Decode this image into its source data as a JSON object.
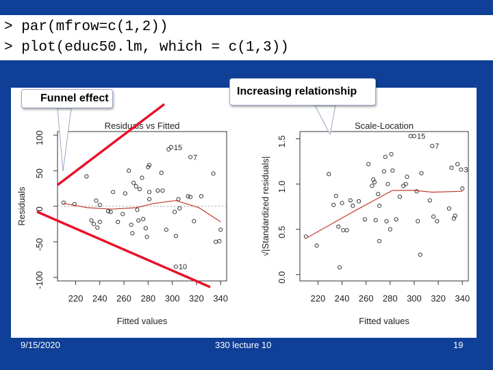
{
  "code": {
    "line1": "> par(mfrow=c(1,2))",
    "line2": "> plot(educ50.lm, which = c(1,3))"
  },
  "callouts": {
    "funnel": "Funnel effect",
    "increasing": "Increasing relationship"
  },
  "footer": {
    "date": "9/15/2020",
    "title": "330 lecture 10",
    "page": "19"
  },
  "colors": {
    "slide_bg": "#0f3f96",
    "smoother": "#c0392b",
    "annotation_line": "#e8102a"
  },
  "chart_data": [
    {
      "type": "scatter",
      "title": "Residuals vs Fitted",
      "xlabel": "Fitted values",
      "ylabel": "Residuals",
      "xlim": [
        205,
        345
      ],
      "ylim": [
        -105,
        105
      ],
      "xticks": [
        "220",
        "240",
        "260",
        "280",
        "300",
        "320",
        "340"
      ],
      "yticks": [
        "-100",
        "-50",
        "0",
        "50",
        "100"
      ],
      "reference_line": 0,
      "points": [
        {
          "x": 210,
          "y": 5
        },
        {
          "x": 219,
          "y": 3
        },
        {
          "x": 229,
          "y": 42
        },
        {
          "x": 233,
          "y": -20
        },
        {
          "x": 235,
          "y": -25
        },
        {
          "x": 237,
          "y": 8
        },
        {
          "x": 238,
          "y": -30
        },
        {
          "x": 240,
          "y": -22
        },
        {
          "x": 240,
          "y": 2
        },
        {
          "x": 247,
          "y": -7
        },
        {
          "x": 249,
          "y": -8
        },
        {
          "x": 251,
          "y": 20
        },
        {
          "x": 255,
          "y": -22
        },
        {
          "x": 259,
          "y": -11
        },
        {
          "x": 261,
          "y": 18
        },
        {
          "x": 264,
          "y": 50
        },
        {
          "x": 266,
          "y": -26
        },
        {
          "x": 267,
          "y": -38
        },
        {
          "x": 268,
          "y": 33
        },
        {
          "x": 270,
          "y": 28
        },
        {
          "x": 271,
          "y": -5
        },
        {
          "x": 272,
          "y": -20
        },
        {
          "x": 273,
          "y": 24
        },
        {
          "x": 275,
          "y": 40
        },
        {
          "x": 276,
          "y": -18
        },
        {
          "x": 278,
          "y": -31
        },
        {
          "x": 279,
          "y": -43
        },
        {
          "x": 280,
          "y": 55
        },
        {
          "x": 281,
          "y": 58
        },
        {
          "x": 281,
          "y": 20
        },
        {
          "x": 281,
          "y": 10
        },
        {
          "x": 288,
          "y": 22
        },
        {
          "x": 291,
          "y": 47
        },
        {
          "x": 292,
          "y": 22
        },
        {
          "x": 295,
          "y": -33
        },
        {
          "x": 297,
          "y": 80
        },
        {
          "x": 302,
          "y": -8
        },
        {
          "x": 303,
          "y": -42
        },
        {
          "x": 305,
          "y": 10
        },
        {
          "x": 306,
          "y": -3
        },
        {
          "x": 313,
          "y": 14
        },
        {
          "x": 315,
          "y": 13
        },
        {
          "x": 318,
          "y": -21
        },
        {
          "x": 324,
          "y": 14
        },
        {
          "x": 334,
          "y": 46
        },
        {
          "x": 336,
          "y": -50
        },
        {
          "x": 339,
          "y": -49
        },
        {
          "x": 340,
          "y": -33
        }
      ],
      "smoother": [
        {
          "x": 210,
          "y": 4
        },
        {
          "x": 230,
          "y": -2
        },
        {
          "x": 250,
          "y": -4
        },
        {
          "x": 270,
          "y": -2
        },
        {
          "x": 285,
          "y": 4
        },
        {
          "x": 303,
          "y": 8
        },
        {
          "x": 322,
          "y": -2
        },
        {
          "x": 340,
          "y": -22
        }
      ],
      "labeled_points": [
        {
          "x": 299,
          "y": 83,
          "label": "15"
        },
        {
          "x": 315,
          "y": 69,
          "label": "7"
        },
        {
          "x": 303,
          "y": -85,
          "label": "10"
        }
      ]
    },
    {
      "type": "scatter",
      "title": "Scale-Location",
      "xlabel": "Fitted values",
      "ylabel": "√|Standardized residuals|",
      "xlim": [
        205,
        345
      ],
      "ylim": [
        -0.07,
        1.58
      ],
      "xticks": [
        "220",
        "240",
        "260",
        "280",
        "300",
        "320",
        "340"
      ],
      "yticks": [
        "0.0",
        "0.5",
        "1.0",
        "1.5"
      ],
      "points": [
        {
          "x": 210,
          "y": 0.42
        },
        {
          "x": 219,
          "y": 0.32
        },
        {
          "x": 229,
          "y": 1.11
        },
        {
          "x": 233,
          "y": 0.77
        },
        {
          "x": 235,
          "y": 0.87
        },
        {
          "x": 237,
          "y": 0.53
        },
        {
          "x": 238,
          "y": 0.08
        },
        {
          "x": 240,
          "y": 0.79
        },
        {
          "x": 241,
          "y": 0.49
        },
        {
          "x": 244,
          "y": 0.49
        },
        {
          "x": 247,
          "y": 0.82
        },
        {
          "x": 249,
          "y": 0.76
        },
        {
          "x": 254,
          "y": 0.81
        },
        {
          "x": 259,
          "y": 0.61
        },
        {
          "x": 262,
          "y": 1.22
        },
        {
          "x": 265,
          "y": 0.98
        },
        {
          "x": 266,
          "y": 1.05
        },
        {
          "x": 267,
          "y": 1.02
        },
        {
          "x": 268,
          "y": 0.6
        },
        {
          "x": 270,
          "y": 0.89
        },
        {
          "x": 271,
          "y": 0.76
        },
        {
          "x": 271,
          "y": 0.37
        },
        {
          "x": 275,
          "y": 1.14
        },
        {
          "x": 276,
          "y": 1.3
        },
        {
          "x": 277,
          "y": 0.59
        },
        {
          "x": 278,
          "y": 1.0
        },
        {
          "x": 280,
          "y": 0.5
        },
        {
          "x": 281,
          "y": 1.33
        },
        {
          "x": 282,
          "y": 1.15
        },
        {
          "x": 285,
          "y": 0.61
        },
        {
          "x": 288,
          "y": 0.86
        },
        {
          "x": 291,
          "y": 0.98
        },
        {
          "x": 293,
          "y": 1.0
        },
        {
          "x": 294,
          "y": 1.08
        },
        {
          "x": 297,
          "y": 1.53
        },
        {
          "x": 302,
          "y": 0.92
        },
        {
          "x": 303,
          "y": 0.59
        },
        {
          "x": 305,
          "y": 0.22
        },
        {
          "x": 306,
          "y": 1.12
        },
        {
          "x": 313,
          "y": 0.82
        },
        {
          "x": 316,
          "y": 0.64
        },
        {
          "x": 319,
          "y": 0.59
        },
        {
          "x": 329,
          "y": 0.73
        },
        {
          "x": 331,
          "y": 1.18
        },
        {
          "x": 333,
          "y": 0.62
        },
        {
          "x": 334,
          "y": 0.65
        },
        {
          "x": 336,
          "y": 1.22
        },
        {
          "x": 340,
          "y": 0.95
        }
      ],
      "smoother": [
        {
          "x": 210,
          "y": 0.4
        },
        {
          "x": 230,
          "y": 0.55
        },
        {
          "x": 250,
          "y": 0.7
        },
        {
          "x": 268,
          "y": 0.83
        },
        {
          "x": 282,
          "y": 0.93
        },
        {
          "x": 300,
          "y": 0.93
        },
        {
          "x": 315,
          "y": 0.91
        },
        {
          "x": 340,
          "y": 0.92
        }
      ],
      "labeled_points": [
        {
          "x": 300,
          "y": 1.53,
          "label": "15"
        },
        {
          "x": 315,
          "y": 1.42,
          "label": "7"
        },
        {
          "x": 339,
          "y": 1.16,
          "label": "3"
        }
      ]
    }
  ]
}
